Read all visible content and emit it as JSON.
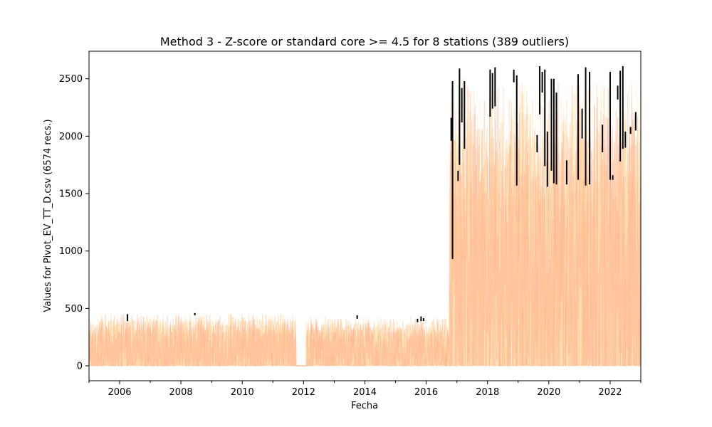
{
  "chart_data": {
    "type": "line",
    "title": "Method 3 - Z-score or standard core >= 4.5 for 8 stations (389 outliers)",
    "xlabel": "Fecha",
    "ylabel": "Values for Pivot_EV_TT_D.csv (6574 recs.)",
    "xlim": [
      "2005-01-01",
      "2023-01-01"
    ],
    "ylim": [
      -130,
      2740
    ],
    "x_ticks": [
      "2006",
      "2008",
      "2010",
      "2012",
      "2014",
      "2016",
      "2018",
      "2020",
      "2022"
    ],
    "y_ticks": [
      0,
      500,
      1000,
      1500,
      2000,
      2500
    ],
    "grid": false,
    "legend": "none",
    "colors": {
      "stations": [
        "#ffc896",
        "#ffb38a",
        "#ffe3a8",
        "#ffcfb3",
        "#ffd27a",
        "#ffbe9e",
        "#fff0c2",
        "#ffa889"
      ],
      "outliers": "#000000"
    },
    "series_summary": [
      {
        "period": [
          "2005-01-01",
          "2011-10-01"
        ],
        "low": 0,
        "high": 470
      },
      {
        "period": [
          "2011-10-01",
          "2012-02-01"
        ],
        "low": 0,
        "high": 0
      },
      {
        "period": [
          "2012-02-01",
          "2016-10-01"
        ],
        "low": 0,
        "high": 440
      },
      {
        "period": [
          "2016-10-01",
          "2023-01-01"
        ],
        "low": 0,
        "high": 2600
      }
    ],
    "outliers": [
      {
        "x": "2006-04-05",
        "y": [
          390,
          450
        ]
      },
      {
        "x": "2008-06-15",
        "y": [
          440,
          460
        ]
      },
      {
        "x": "2013-10-01",
        "y": [
          410,
          440
        ]
      },
      {
        "x": "2015-09-20",
        "y": [
          380,
          410
        ]
      },
      {
        "x": "2015-11-01",
        "y": [
          390,
          430
        ]
      },
      {
        "x": "2015-12-01",
        "y": [
          390,
          415
        ]
      },
      {
        "x": "2016-10-25",
        "y": [
          1960,
          2160
        ]
      },
      {
        "x": "2016-11-10",
        "y": [
          930,
          2480
        ]
      },
      {
        "x": "2017-01-15",
        "y": [
          1610,
          1700
        ]
      },
      {
        "x": "2017-02-01",
        "y": [
          1750,
          2590
        ]
      },
      {
        "x": "2017-03-01",
        "y": [
          2120,
          2420
        ]
      },
      {
        "x": "2017-04-01",
        "y": [
          1890,
          2480
        ]
      },
      {
        "x": "2018-02-01",
        "y": [
          2170,
          2580
        ]
      },
      {
        "x": "2018-03-01",
        "y": [
          2240,
          2550
        ]
      },
      {
        "x": "2018-04-01",
        "y": [
          2260,
          2600
        ]
      },
      {
        "x": "2018-11-10",
        "y": [
          2470,
          2580
        ]
      },
      {
        "x": "2018-12-15",
        "y": [
          1570,
          2530
        ]
      },
      {
        "x": "2019-08-15",
        "y": [
          1860,
          2010
        ]
      },
      {
        "x": "2019-09-15",
        "y": [
          2190,
          2610
        ]
      },
      {
        "x": "2019-10-15",
        "y": [
          2380,
          2560
        ]
      },
      {
        "x": "2019-11-15",
        "y": [
          1740,
          2580
        ]
      },
      {
        "x": "2019-12-15",
        "y": [
          1560,
          2040
        ]
      },
      {
        "x": "2020-02-01",
        "y": [
          1700,
          2500
        ]
      },
      {
        "x": "2020-03-01",
        "y": [
          1590,
          2500
        ]
      },
      {
        "x": "2020-04-01",
        "y": [
          1580,
          2380
        ]
      },
      {
        "x": "2020-08-01",
        "y": [
          1580,
          1790
        ]
      },
      {
        "x": "2020-12-15",
        "y": [
          1620,
          2540
        ]
      },
      {
        "x": "2021-02-01",
        "y": [
          1980,
          2240
        ]
      },
      {
        "x": "2021-03-15",
        "y": [
          1570,
          2600
        ]
      },
      {
        "x": "2021-05-01",
        "y": [
          1580,
          2560
        ]
      },
      {
        "x": "2021-10-01",
        "y": [
          1860,
          2100
        ]
      },
      {
        "x": "2022-01-01",
        "y": [
          1620,
          2560
        ]
      },
      {
        "x": "2022-02-01",
        "y": [
          1620,
          1660
        ]
      },
      {
        "x": "2022-04-01",
        "y": [
          2320,
          2440
        ]
      },
      {
        "x": "2022-05-01",
        "y": [
          1780,
          2570
        ]
      },
      {
        "x": "2022-06-01",
        "y": [
          1890,
          2610
        ]
      },
      {
        "x": "2022-07-01",
        "y": [
          1900,
          2040
        ]
      },
      {
        "x": "2022-09-01",
        "y": [
          2020,
          2080
        ]
      },
      {
        "x": "2022-11-01",
        "y": [
          2050,
          2210
        ]
      }
    ]
  }
}
